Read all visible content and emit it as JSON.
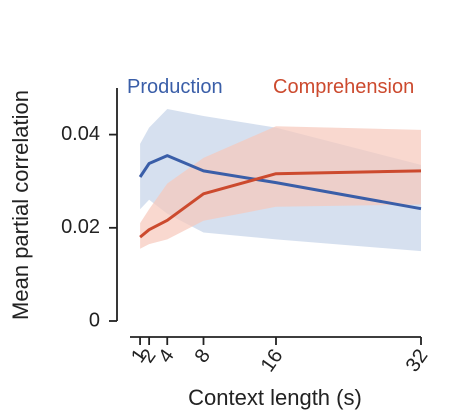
{
  "chart_data": {
    "type": "line",
    "xlabel": "Context length (s)",
    "ylabel": "Mean partial correlation",
    "x_ticks": [
      1,
      2,
      4,
      8,
      16,
      32
    ],
    "y_ticks": [
      "0",
      "0.02",
      "0.04"
    ],
    "y_tick_values": [
      0,
      0.02,
      0.04
    ],
    "xlim": [
      0,
      32
    ],
    "ylim": [
      0,
      0.05
    ],
    "legend_position": "top",
    "series": [
      {
        "name": "Production",
        "color": "#3a5ea8",
        "band_color": "#c5d3e8",
        "x": [
          1,
          2,
          4,
          8,
          16,
          32
        ],
        "values": [
          0.0309,
          0.0338,
          0.0355,
          0.0322,
          0.0297,
          0.0241
        ],
        "lower": [
          0.024,
          0.026,
          0.023,
          0.019,
          0.0175,
          0.015
        ],
        "upper": [
          0.038,
          0.0415,
          0.0455,
          0.044,
          0.0415,
          0.0335
        ]
      },
      {
        "name": "Comprehension",
        "color": "#cc4a2e",
        "band_color": "#f6c7bb",
        "x": [
          1,
          2,
          4,
          8,
          16,
          32
        ],
        "values": [
          0.018,
          0.0196,
          0.0216,
          0.0273,
          0.0316,
          0.0322
        ],
        "lower": [
          0.0155,
          0.0165,
          0.0175,
          0.0215,
          0.0245,
          0.025
        ],
        "upper": [
          0.021,
          0.024,
          0.0295,
          0.035,
          0.0418,
          0.041
        ]
      }
    ]
  }
}
